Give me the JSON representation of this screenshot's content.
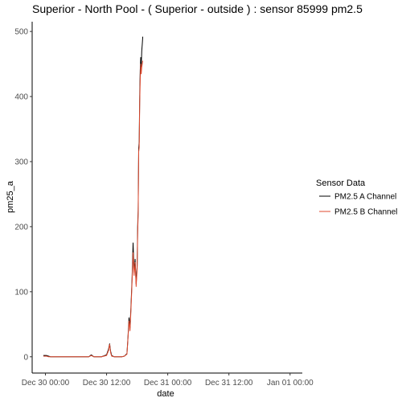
{
  "chart_data": {
    "type": "line",
    "title": "Superior - North Pool - ( Superior - outside ) : sensor 85999 pm2.5",
    "xlabel": "date",
    "ylabel": "pm25_a",
    "x_unit": "hours",
    "x_ticks": [
      {
        "value": 0,
        "label": "Dec 30 00:00"
      },
      {
        "value": 12,
        "label": "Dec 30 12:00"
      },
      {
        "value": 24,
        "label": "Dec 31 00:00"
      },
      {
        "value": 36,
        "label": "Dec 31 12:00"
      },
      {
        "value": 48,
        "label": "Jan 01 00:00"
      }
    ],
    "y_ticks": [
      0,
      100,
      200,
      300,
      400,
      500
    ],
    "xlim": [
      -2.6,
      50.4
    ],
    "ylim": [
      -25,
      515
    ],
    "grid": false,
    "legend": {
      "title": "Sensor Data",
      "placement": "right",
      "entries": [
        "PM2.5 A Channel",
        "PM2.5 B Channel"
      ]
    },
    "series": [
      {
        "name": "PM2.5 A Channel",
        "color": "#000000",
        "x": [
          -0.4,
          0.2,
          0.6,
          1.0,
          2.0,
          4.0,
          6.0,
          8.5,
          9.0,
          9.5,
          11.0,
          12.0,
          12.4,
          12.6,
          12.8,
          13.0,
          13.5,
          14.0,
          14.5,
          15.0,
          15.5,
          16.0,
          16.2,
          16.4,
          16.6,
          16.8,
          17.0,
          17.2,
          17.4,
          17.6,
          17.8,
          18.0,
          18.1,
          18.2,
          18.3,
          18.4,
          18.5,
          18.6,
          18.7,
          18.8,
          18.9,
          19.0,
          19.1
        ],
        "y": [
          2,
          2,
          1,
          0,
          0,
          0,
          0,
          0,
          3,
          0,
          0,
          3,
          12,
          20,
          8,
          2,
          0,
          0,
          0,
          0,
          1,
          5,
          30,
          60,
          45,
          80,
          120,
          175,
          130,
          150,
          112,
          140,
          200,
          225,
          320,
          330,
          400,
          440,
          460,
          445,
          470,
          480,
          492
        ]
      },
      {
        "name": "PM2.5 B Channel",
        "color": "#e04a2f",
        "x": [
          -0.4,
          0.2,
          0.6,
          1.0,
          2.0,
          4.0,
          6.0,
          8.5,
          9.0,
          9.5,
          11.0,
          12.0,
          12.4,
          12.6,
          12.8,
          13.0,
          13.5,
          14.0,
          14.5,
          15.0,
          15.5,
          16.0,
          16.2,
          16.4,
          16.6,
          16.8,
          17.0,
          17.2,
          17.4,
          17.6,
          17.8,
          18.0,
          18.1,
          18.2,
          18.3,
          18.4,
          18.5,
          18.6,
          18.7,
          18.8,
          18.9,
          19.0,
          19.1
        ],
        "y": [
          1,
          1,
          0,
          0,
          0,
          0,
          0,
          0,
          2,
          0,
          0,
          2,
          10,
          19,
          6,
          1,
          0,
          0,
          0,
          0,
          1,
          4,
          28,
          55,
          40,
          75,
          115,
          160,
          125,
          145,
          108,
          135,
          190,
          220,
          315,
          322,
          390,
          425,
          450,
          435,
          445,
          450,
          455
        ]
      }
    ]
  }
}
